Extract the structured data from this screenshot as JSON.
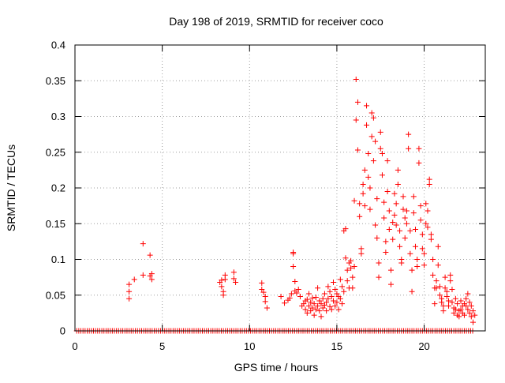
{
  "chart_data": {
    "type": "scatter",
    "title": "Day 198 of 2019, SRMTID for receiver coco",
    "xlabel": "GPS time / hours",
    "ylabel": "SRMTID / TECUs",
    "xlim": [
      0,
      23.5
    ],
    "ylim": [
      0,
      0.4
    ],
    "x_ticks": [
      0,
      5,
      10,
      15,
      20
    ],
    "x_tick_labels": [
      "0",
      "5",
      "10",
      "15",
      "20"
    ],
    "y_ticks": [
      0,
      0.05,
      0.1,
      0.15,
      0.2,
      0.25,
      0.3,
      0.35,
      0.4
    ],
    "y_tick_labels": [
      "0",
      "0.05",
      "0.1",
      "0.15",
      "0.2",
      "0.25",
      "0.3",
      "0.35",
      "0.4"
    ],
    "grid": true,
    "marker": "+",
    "series": [
      {
        "name": "SRMTID",
        "color": "#ff0000",
        "points": [
          [
            3.1,
            0.065
          ],
          [
            3.1,
            0.055
          ],
          [
            3.1,
            0.045
          ],
          [
            3.4,
            0.072
          ],
          [
            3.9,
            0.122
          ],
          [
            3.9,
            0.078
          ],
          [
            4.3,
            0.106
          ],
          [
            4.3,
            0.077
          ],
          [
            4.4,
            0.072
          ],
          [
            4.4,
            0.08
          ],
          [
            8.3,
            0.068
          ],
          [
            8.4,
            0.071
          ],
          [
            8.4,
            0.062
          ],
          [
            8.5,
            0.055
          ],
          [
            8.5,
            0.05
          ],
          [
            8.6,
            0.072
          ],
          [
            8.6,
            0.078
          ],
          [
            9.1,
            0.082
          ],
          [
            9.1,
            0.073
          ],
          [
            9.2,
            0.068
          ],
          [
            10.7,
            0.067
          ],
          [
            10.7,
            0.058
          ],
          [
            10.8,
            0.054
          ],
          [
            10.9,
            0.048
          ],
          [
            10.9,
            0.041
          ],
          [
            11.0,
            0.032
          ],
          [
            11.8,
            0.048
          ],
          [
            12.0,
            0.039
          ],
          [
            12.2,
            0.043
          ],
          [
            12.3,
            0.046
          ],
          [
            12.4,
            0.052
          ],
          [
            12.5,
            0.11
          ],
          [
            12.5,
            0.108
          ],
          [
            12.5,
            0.09
          ],
          [
            12.6,
            0.069
          ],
          [
            12.6,
            0.056
          ],
          [
            12.7,
            0.053
          ],
          [
            12.8,
            0.058
          ],
          [
            12.9,
            0.048
          ],
          [
            13.0,
            0.035
          ],
          [
            13.1,
            0.038
          ],
          [
            13.2,
            0.042
          ],
          [
            13.2,
            0.03
          ],
          [
            13.3,
            0.044
          ],
          [
            13.3,
            0.025
          ],
          [
            13.4,
            0.052
          ],
          [
            13.4,
            0.035
          ],
          [
            13.5,
            0.04
          ],
          [
            13.5,
            0.028
          ],
          [
            13.6,
            0.046
          ],
          [
            13.6,
            0.032
          ],
          [
            13.7,
            0.038
          ],
          [
            13.7,
            0.022
          ],
          [
            13.8,
            0.047
          ],
          [
            13.8,
            0.03
          ],
          [
            13.9,
            0.06
          ],
          [
            13.9,
            0.035
          ],
          [
            14.0,
            0.042
          ],
          [
            14.0,
            0.028
          ],
          [
            14.1,
            0.038
          ],
          [
            14.1,
            0.02
          ],
          [
            14.2,
            0.045
          ],
          [
            14.2,
            0.032
          ],
          [
            14.3,
            0.052
          ],
          [
            14.3,
            0.036
          ],
          [
            14.4,
            0.04
          ],
          [
            14.4,
            0.028
          ],
          [
            14.5,
            0.062
          ],
          [
            14.5,
            0.045
          ],
          [
            14.6,
            0.055
          ],
          [
            14.6,
            0.034
          ],
          [
            14.7,
            0.048
          ],
          [
            14.7,
            0.03
          ],
          [
            14.8,
            0.068
          ],
          [
            14.8,
            0.042
          ],
          [
            14.9,
            0.058
          ],
          [
            14.9,
            0.035
          ],
          [
            15.0,
            0.052
          ],
          [
            15.0,
            0.04
          ],
          [
            15.1,
            0.048
          ],
          [
            15.1,
            0.03
          ],
          [
            15.2,
            0.072
          ],
          [
            15.2,
            0.045
          ],
          [
            15.3,
            0.062
          ],
          [
            15.3,
            0.038
          ],
          [
            15.4,
            0.055
          ],
          [
            15.4,
            0.14
          ],
          [
            15.5,
            0.143
          ],
          [
            15.5,
            0.102
          ],
          [
            15.6,
            0.085
          ],
          [
            15.6,
            0.07
          ],
          [
            15.7,
            0.095
          ],
          [
            15.7,
            0.06
          ],
          [
            15.8,
            0.088
          ],
          [
            15.8,
            0.098
          ],
          [
            15.9,
            0.075
          ],
          [
            15.9,
            0.06
          ],
          [
            16.0,
            0.182
          ],
          [
            16.0,
            0.09
          ],
          [
            16.1,
            0.352
          ],
          [
            16.1,
            0.295
          ],
          [
            16.2,
            0.32
          ],
          [
            16.2,
            0.253
          ],
          [
            16.3,
            0.178
          ],
          [
            16.3,
            0.16
          ],
          [
            16.4,
            0.115
          ],
          [
            16.4,
            0.108
          ],
          [
            16.5,
            0.205
          ],
          [
            16.5,
            0.192
          ],
          [
            16.6,
            0.225
          ],
          [
            16.6,
            0.175
          ],
          [
            16.7,
            0.315
          ],
          [
            16.7,
            0.288
          ],
          [
            16.8,
            0.248
          ],
          [
            16.8,
            0.215
          ],
          [
            16.9,
            0.2
          ],
          [
            16.9,
            0.17
          ],
          [
            17.0,
            0.305
          ],
          [
            17.0,
            0.272
          ],
          [
            17.1,
            0.298
          ],
          [
            17.1,
            0.238
          ],
          [
            17.2,
            0.265
          ],
          [
            17.2,
            0.148
          ],
          [
            17.3,
            0.185
          ],
          [
            17.3,
            0.13
          ],
          [
            17.4,
            0.095
          ],
          [
            17.4,
            0.075
          ],
          [
            17.5,
            0.278
          ],
          [
            17.5,
            0.255
          ],
          [
            17.6,
            0.248
          ],
          [
            17.6,
            0.218
          ],
          [
            17.7,
            0.18
          ],
          [
            17.7,
            0.158
          ],
          [
            17.8,
            0.125
          ],
          [
            17.8,
            0.11
          ],
          [
            17.9,
            0.238
          ],
          [
            17.9,
            0.195
          ],
          [
            18.0,
            0.168
          ],
          [
            18.0,
            0.142
          ],
          [
            18.1,
            0.085
          ],
          [
            18.1,
            0.065
          ],
          [
            18.2,
            0.152
          ],
          [
            18.2,
            0.128
          ],
          [
            18.3,
            0.192
          ],
          [
            18.3,
            0.162
          ],
          [
            18.4,
            0.178
          ],
          [
            18.4,
            0.148
          ],
          [
            18.5,
            0.225
          ],
          [
            18.5,
            0.205
          ],
          [
            18.6,
            0.14
          ],
          [
            18.6,
            0.118
          ],
          [
            18.7,
            0.095
          ],
          [
            18.7,
            0.1
          ],
          [
            18.8,
            0.188
          ],
          [
            18.8,
            0.17
          ],
          [
            18.9,
            0.158
          ],
          [
            18.9,
            0.13
          ],
          [
            19.0,
            0.168
          ],
          [
            19.0,
            0.15
          ],
          [
            19.1,
            0.275
          ],
          [
            19.1,
            0.255
          ],
          [
            19.2,
            0.14
          ],
          [
            19.2,
            0.108
          ],
          [
            19.3,
            0.085
          ],
          [
            19.3,
            0.055
          ],
          [
            19.4,
            0.188
          ],
          [
            19.4,
            0.165
          ],
          [
            19.5,
            0.142
          ],
          [
            19.5,
            0.118
          ],
          [
            19.6,
            0.1
          ],
          [
            19.6,
            0.09
          ],
          [
            19.7,
            0.255
          ],
          [
            19.7,
            0.235
          ],
          [
            19.8,
            0.175
          ],
          [
            19.8,
            0.155
          ],
          [
            19.9,
            0.135
          ],
          [
            19.9,
            0.115
          ],
          [
            20.0,
            0.108
          ],
          [
            20.0,
            0.092
          ],
          [
            20.1,
            0.178
          ],
          [
            20.1,
            0.15
          ],
          [
            20.2,
            0.168
          ],
          [
            20.2,
            0.145
          ],
          [
            20.3,
            0.212
          ],
          [
            20.3,
            0.205
          ],
          [
            20.4,
            0.135
          ],
          [
            20.4,
            0.128
          ],
          [
            20.5,
            0.1
          ],
          [
            20.5,
            0.078
          ],
          [
            20.6,
            0.06
          ],
          [
            20.6,
            0.038
          ],
          [
            20.7,
            0.07
          ],
          [
            20.7,
            0.06
          ],
          [
            20.8,
            0.092
          ],
          [
            20.8,
            0.118
          ],
          [
            20.9,
            0.062
          ],
          [
            20.9,
            0.05
          ],
          [
            21.0,
            0.045
          ],
          [
            21.0,
            0.04
          ],
          [
            21.1,
            0.035
          ],
          [
            21.1,
            0.028
          ],
          [
            21.2,
            0.075
          ],
          [
            21.2,
            0.06
          ],
          [
            21.3,
            0.055
          ],
          [
            21.3,
            0.048
          ],
          [
            21.4,
            0.042
          ],
          [
            21.4,
            0.035
          ],
          [
            21.5,
            0.078
          ],
          [
            21.5,
            0.07
          ],
          [
            21.6,
            0.058
          ],
          [
            21.6,
            0.04
          ],
          [
            21.7,
            0.032
          ],
          [
            21.7,
            0.025
          ],
          [
            21.8,
            0.045
          ],
          [
            21.8,
            0.03
          ],
          [
            21.9,
            0.038
          ],
          [
            21.9,
            0.022
          ],
          [
            22.0,
            0.028
          ],
          [
            22.0,
            0.02
          ],
          [
            22.1,
            0.042
          ],
          [
            22.1,
            0.03
          ],
          [
            22.2,
            0.035
          ],
          [
            22.2,
            0.025
          ],
          [
            22.3,
            0.038
          ],
          [
            22.3,
            0.022
          ],
          [
            22.4,
            0.045
          ],
          [
            22.4,
            0.035
          ],
          [
            22.5,
            0.052
          ],
          [
            22.5,
            0.03
          ],
          [
            22.6,
            0.04
          ],
          [
            22.6,
            0.025
          ],
          [
            22.7,
            0.035
          ],
          [
            22.7,
            0.02
          ],
          [
            22.8,
            0.028
          ],
          [
            22.8,
            0.012
          ],
          [
            22.9,
            0.022
          ]
        ]
      }
    ]
  }
}
